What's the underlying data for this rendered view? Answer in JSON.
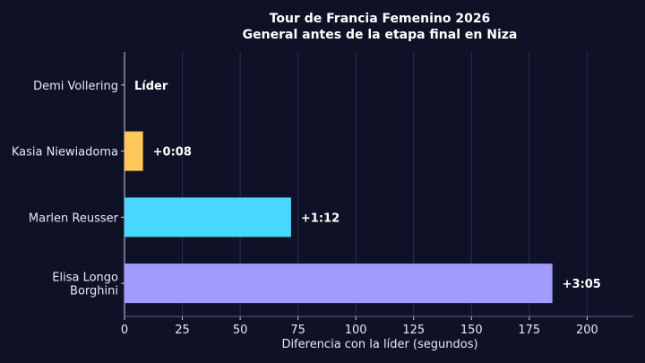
{
  "chart_data": {
    "type": "bar",
    "orientation": "horizontal",
    "title": "Tour de Francia Femenino 2026",
    "subtitle": "General antes de la etapa final en Niza",
    "xlabel": "Diferencia con la líder (segundos)",
    "ylabel": "",
    "xlim": [
      0,
      220
    ],
    "xticks": [
      0,
      25,
      50,
      75,
      100,
      125,
      150,
      175,
      200
    ],
    "grid": "x",
    "categories": [
      "Demi Vollering",
      "Kasia Niewiadoma",
      "Marlen Reusser",
      "Elisa Longo Borghini"
    ],
    "values": [
      0,
      8,
      72,
      185
    ],
    "data_labels": [
      "Líder",
      "+0:08",
      "+1:12",
      "+3:05"
    ],
    "colors": [
      "#ffffff",
      "#ffc857",
      "#48d8ff",
      "#a29bfe"
    ]
  }
}
